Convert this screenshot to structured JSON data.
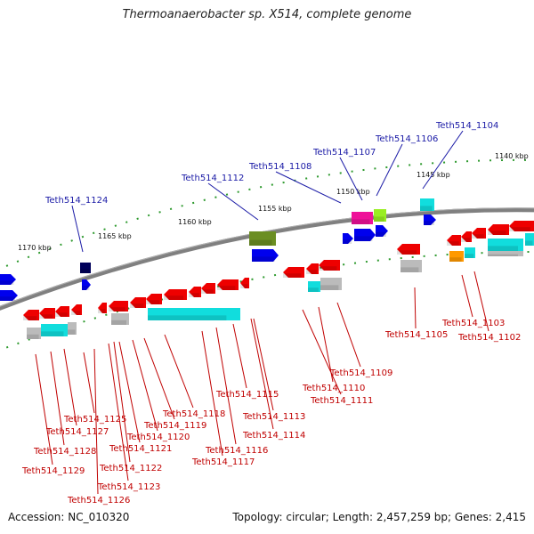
{
  "title": "Thermoanaerobacter sp. X514, complete genome",
  "footer": {
    "accession": "Accession: NC_010320",
    "topology": "Topology: circular; Length: 2,457,259 bp; Genes: 2,415"
  },
  "colors": {
    "top_label": "#1a1aa6",
    "bottom_label": "#c00000",
    "red": "#ee0000",
    "blue": "#0000ee",
    "cyan": "#11dddd",
    "gray": "#bbbbbb",
    "magenta": "#ee1199",
    "lime": "#99ee22",
    "olive": "#6b8e23",
    "orange": "#ff9900",
    "navy": "#00005a",
    "backbone": "#808080",
    "tick": "#2e9a2e"
  },
  "scale_ticks": [
    {
      "label": "1170 kbp"
    },
    {
      "label": "1165 kbp"
    },
    {
      "label": "1160 kbp"
    },
    {
      "label": "1155 kbp"
    },
    {
      "label": "1150 kbp"
    },
    {
      "label": "1145 kbp"
    },
    {
      "label": "1140 kbp"
    }
  ],
  "top_labels": [
    {
      "text": "Teth514_1124"
    },
    {
      "text": "Teth514_1112"
    },
    {
      "text": "Teth514_1108"
    },
    {
      "text": "Teth514_1107"
    },
    {
      "text": "Teth514_1106"
    },
    {
      "text": "Teth514_1104"
    }
  ],
  "bottom_labels": [
    {
      "text": "Teth514_1125"
    },
    {
      "text": "Teth514_1127"
    },
    {
      "text": "Teth514_1128"
    },
    {
      "text": "Teth514_1129"
    },
    {
      "text": "Teth514_1126"
    },
    {
      "text": "Teth514_1123"
    },
    {
      "text": "Teth514_1122"
    },
    {
      "text": "Teth514_1121"
    },
    {
      "text": "Teth514_1120"
    },
    {
      "text": "Teth514_1119"
    },
    {
      "text": "Teth514_1118"
    },
    {
      "text": "Teth514_1117"
    },
    {
      "text": "Teth514_1116"
    },
    {
      "text": "Teth514_1114"
    },
    {
      "text": "Teth514_1113"
    },
    {
      "text": "Teth514_1115"
    },
    {
      "text": "Teth514_1111"
    },
    {
      "text": "Teth514_1110"
    },
    {
      "text": "Teth514_1109"
    },
    {
      "text": "Teth514_1105"
    },
    {
      "text": "Teth514_1103"
    },
    {
      "text": "Teth514_1102"
    }
  ]
}
